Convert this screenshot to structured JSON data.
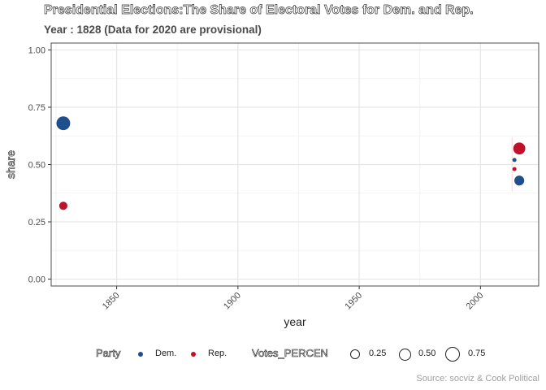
{
  "chart_data": {
    "type": "scatter",
    "title": "Presidential Elections:The Share of Electoral Votes for Dem. and Rep.",
    "subtitle": "Year : 1828 (Data for 2020 are provisional)",
    "xlabel": "year",
    "ylabel": "share",
    "caption": "Source: socviz & Cook Political",
    "xlim": [
      1823,
      2024
    ],
    "ylim": [
      -0.03,
      1.03
    ],
    "xticks": [
      1850,
      1900,
      1950,
      2000
    ],
    "yticks": [
      "0.00",
      "0.25",
      "0.50",
      "0.75",
      "1.00"
    ],
    "grid": true,
    "legend_position": "bottom",
    "series": [
      {
        "name": "Dem.",
        "color": "#1f4e8c",
        "points": [
          {
            "x": 1828,
            "y": 0.68,
            "size": 0.68
          },
          {
            "x": 2016,
            "y": 0.43,
            "size": 0.43
          },
          {
            "x": 2014,
            "y": 0.52,
            "size": 0.05
          }
        ]
      },
      {
        "name": "Rep.",
        "color": "#c0102a",
        "points": [
          {
            "x": 1828,
            "y": 0.32,
            "size": 0.32
          },
          {
            "x": 2016,
            "y": 0.57,
            "size": 0.57
          },
          {
            "x": 2014,
            "y": 0.48,
            "size": 0.05
          }
        ]
      }
    ],
    "legend": {
      "party_title": "Party",
      "party_items": [
        {
          "label": "Dem.",
          "color": "#1f4e8c"
        },
        {
          "label": "Rep.",
          "color": "#c0102a"
        }
      ],
      "size_title": "Votes_PERCEN",
      "size_items": [
        "0.25",
        "0.50",
        "0.75"
      ]
    }
  }
}
